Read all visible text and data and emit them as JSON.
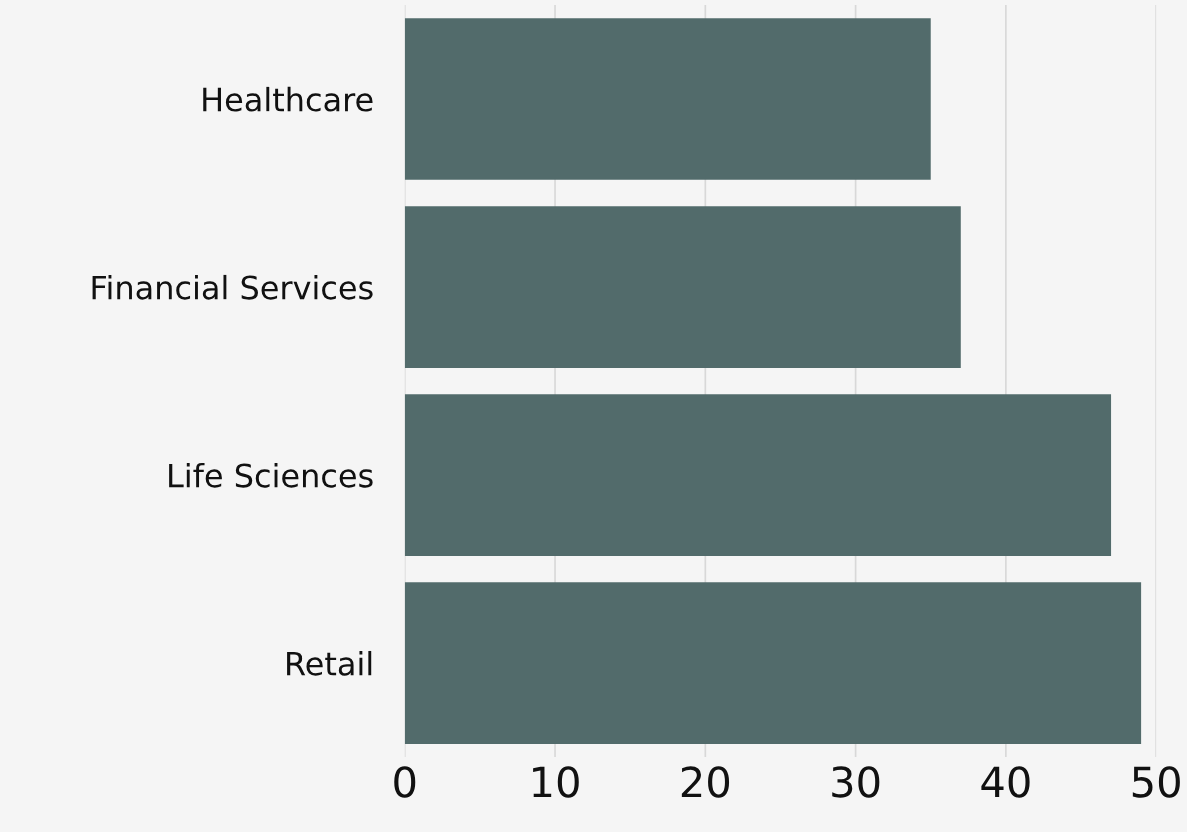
{
  "chart_data": {
    "type": "bar",
    "orientation": "horizontal",
    "categories": [
      "Healthcare",
      "Financial Services",
      "Life Sciences",
      "Retail"
    ],
    "values": [
      35,
      37,
      47,
      49
    ],
    "color": "#526b6b",
    "xlim": [
      0,
      50
    ],
    "xticks": [
      0,
      10,
      20,
      30,
      40,
      50
    ],
    "grid": "x"
  }
}
